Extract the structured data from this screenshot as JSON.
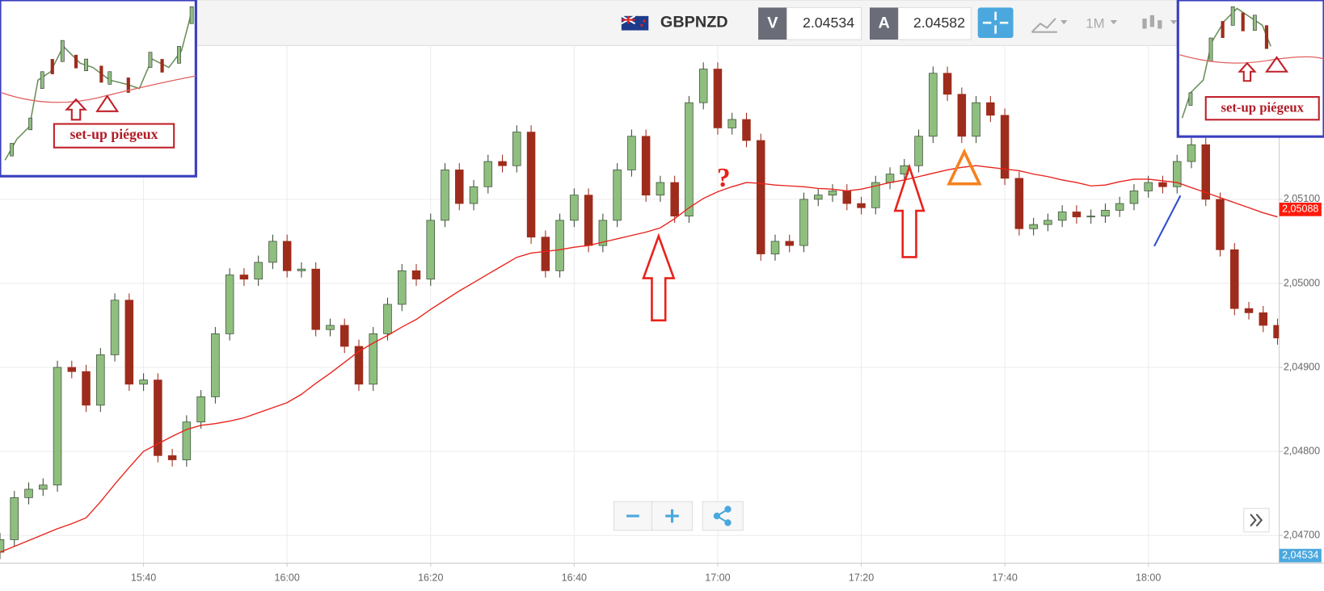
{
  "chart_data": {
    "type": "candlestick",
    "header": {
      "symbol": "GBPNZD",
      "bid_label": "V",
      "bid": 2.04534,
      "ask_label": "A",
      "ask": 2.04582,
      "timeframe": "1M"
    },
    "x": [
      "15:20",
      "15:22",
      "15:24",
      "15:26",
      "15:28",
      "15:30",
      "15:32",
      "15:34",
      "15:36",
      "15:38",
      "15:40",
      "15:42",
      "15:44",
      "15:46",
      "15:48",
      "15:50",
      "15:52",
      "15:54",
      "15:56",
      "15:58",
      "16:00",
      "16:02",
      "16:04",
      "16:06",
      "16:08",
      "16:10",
      "16:12",
      "16:14",
      "16:16",
      "16:18",
      "16:20",
      "16:22",
      "16:24",
      "16:26",
      "16:28",
      "16:30",
      "16:32",
      "16:34",
      "16:36",
      "16:38",
      "16:40",
      "16:42",
      "16:44",
      "16:46",
      "16:48",
      "16:50",
      "16:52",
      "16:54",
      "16:56",
      "16:58",
      "17:00",
      "17:02",
      "17:04",
      "17:06",
      "17:08",
      "17:10",
      "17:12",
      "17:14",
      "17:16",
      "17:18",
      "17:20",
      "17:22",
      "17:24",
      "17:26",
      "17:28",
      "17:30",
      "17:32",
      "17:34",
      "17:36",
      "17:38",
      "17:40",
      "17:42",
      "17:44",
      "17:46",
      "17:48",
      "17:50",
      "17:52",
      "17:54",
      "17:56",
      "17:58",
      "18:00",
      "18:02",
      "18:04",
      "18:06",
      "18:08",
      "18:10",
      "18:12",
      "18:14",
      "18:16",
      "18:18"
    ],
    "open": [
      2.0468,
      2.04695,
      2.04745,
      2.04755,
      2.0476,
      2.049,
      2.04895,
      2.04855,
      2.04915,
      2.0498,
      2.0488,
      2.04885,
      2.04795,
      2.0479,
      2.04835,
      2.04865,
      2.0494,
      2.0501,
      2.05005,
      2.05025,
      2.0505,
      2.05015,
      2.05017,
      2.04945,
      2.0495,
      2.04925,
      2.0488,
      2.0494,
      2.04975,
      2.05015,
      2.05005,
      2.05075,
      2.05135,
      2.05095,
      2.05115,
      2.05145,
      2.0514,
      2.0518,
      2.05055,
      2.05015,
      2.05075,
      2.05105,
      2.05045,
      2.05075,
      2.05135,
      2.05175,
      2.05105,
      2.0512,
      2.0508,
      2.05215,
      2.05255,
      2.05185,
      2.05195,
      2.0517,
      2.05035,
      2.0505,
      2.05045,
      2.051,
      2.05105,
      2.0511,
      2.05095,
      2.0509,
      2.0512,
      2.0513,
      2.0514,
      2.05175,
      2.0525,
      2.05225,
      2.05175,
      2.05215,
      2.052,
      2.05125,
      2.05065,
      2.0507,
      2.05075,
      2.05085,
      2.05079,
      2.0508,
      2.05087,
      2.05095,
      2.0511,
      2.0512,
      2.05115,
      2.05145,
      2.05165,
      2.051,
      2.0504,
      2.0497,
      2.04965,
      2.0495
    ],
    "high": [
      2.04703,
      2.04753,
      2.04763,
      2.04768,
      2.04908,
      2.04908,
      2.04903,
      2.04923,
      2.04988,
      2.04988,
      2.04893,
      2.04893,
      2.04803,
      2.04843,
      2.04873,
      2.04948,
      2.05018,
      2.05018,
      2.05033,
      2.05058,
      2.05058,
      2.05025,
      2.05025,
      2.04958,
      2.04958,
      2.04933,
      2.04948,
      2.04983,
      2.05023,
      2.05023,
      2.05083,
      2.05143,
      2.05143,
      2.05123,
      2.05153,
      2.05153,
      2.05188,
      2.05188,
      2.05063,
      2.05083,
      2.05113,
      2.05113,
      2.05083,
      2.05143,
      2.05183,
      2.05183,
      2.05128,
      2.05128,
      2.05223,
      2.05263,
      2.05263,
      2.05203,
      2.05203,
      2.05178,
      2.05058,
      2.05058,
      2.05108,
      2.05113,
      2.05118,
      2.05118,
      2.05103,
      2.05128,
      2.05138,
      2.05148,
      2.05183,
      2.05258,
      2.05258,
      2.05233,
      2.05223,
      2.05223,
      2.05208,
      2.05133,
      2.05078,
      2.05083,
      2.05093,
      2.05093,
      2.05088,
      2.05095,
      2.05103,
      2.05118,
      2.05128,
      2.05128,
      2.05153,
      2.05173,
      2.05173,
      2.05108,
      2.05048,
      2.04978,
      2.04973,
      2.04958
    ],
    "low": [
      2.04672,
      2.04687,
      2.04737,
      2.04747,
      2.04752,
      2.04887,
      2.04847,
      2.04847,
      2.04907,
      2.04872,
      2.04872,
      2.04787,
      2.04782,
      2.04782,
      2.04827,
      2.04857,
      2.04932,
      2.04997,
      2.04997,
      2.05017,
      2.05007,
      2.05007,
      2.04937,
      2.04937,
      2.04917,
      2.04872,
      2.04872,
      2.04932,
      2.04967,
      2.04997,
      2.04997,
      2.05067,
      2.05087,
      2.05087,
      2.05107,
      2.05132,
      2.05132,
      2.05047,
      2.05007,
      2.05007,
      2.05067,
      2.05037,
      2.05037,
      2.05067,
      2.05127,
      2.05097,
      2.05097,
      2.05072,
      2.05072,
      2.05207,
      2.05177,
      2.05177,
      2.05162,
      2.05027,
      2.05027,
      2.05037,
      2.05037,
      2.05092,
      2.05097,
      2.05087,
      2.05082,
      2.05082,
      2.05112,
      2.05122,
      2.05132,
      2.05167,
      2.05217,
      2.05167,
      2.05167,
      2.05192,
      2.05117,
      2.05057,
      2.05057,
      2.05062,
      2.05067,
      2.05071,
      2.05071,
      2.05072,
      2.05079,
      2.05087,
      2.05102,
      2.05107,
      2.05107,
      2.05137,
      2.05092,
      2.05032,
      2.04962,
      2.04957,
      2.04942,
      2.04927
    ],
    "close": [
      2.04695,
      2.04745,
      2.04755,
      2.0476,
      2.049,
      2.04895,
      2.04855,
      2.04915,
      2.0498,
      2.0488,
      2.04885,
      2.04795,
      2.0479,
      2.04835,
      2.04865,
      2.0494,
      2.0501,
      2.05005,
      2.05025,
      2.0505,
      2.05015,
      2.05017,
      2.04945,
      2.0495,
      2.04925,
      2.0488,
      2.0494,
      2.04975,
      2.05015,
      2.05005,
      2.05075,
      2.05135,
      2.05095,
      2.05115,
      2.05145,
      2.0514,
      2.0518,
      2.05055,
      2.05015,
      2.05075,
      2.05105,
      2.05045,
      2.05075,
      2.05135,
      2.05175,
      2.05105,
      2.0512,
      2.0508,
      2.05215,
      2.05255,
      2.05185,
      2.05195,
      2.0517,
      2.05035,
      2.0505,
      2.05045,
      2.051,
      2.05105,
      2.0511,
      2.05095,
      2.0509,
      2.0512,
      2.0513,
      2.0514,
      2.05175,
      2.0525,
      2.05225,
      2.05175,
      2.05215,
      2.052,
      2.05125,
      2.05065,
      2.0507,
      2.05075,
      2.05085,
      2.05079,
      2.0508,
      2.05087,
      2.05095,
      2.0511,
      2.0512,
      2.05115,
      2.05145,
      2.05165,
      2.051,
      2.0504,
      2.0497,
      2.04965,
      2.0495,
      2.04935
    ],
    "up_color": "#8fbf7f",
    "down_color": "#9e2c1c",
    "ma_color": "#e8221b",
    "ma_values": [
      2.0468,
      2.04687,
      2.04694,
      2.04701,
      2.04708,
      2.04714,
      2.04721,
      2.0474,
      2.04761,
      2.04781,
      2.048,
      2.04809,
      2.04818,
      2.04826,
      2.04831,
      2.04833,
      2.04836,
      2.0484,
      2.04846,
      2.04852,
      2.04858,
      2.04868,
      2.04881,
      2.04893,
      2.04906,
      2.04919,
      2.04929,
      2.04938,
      2.04948,
      2.04957,
      2.04969,
      2.0498,
      2.04991,
      2.05001,
      2.05011,
      2.05021,
      2.05031,
      2.05036,
      2.05038,
      2.0504,
      2.05043,
      2.05045,
      2.05049,
      2.05053,
      2.05057,
      2.05061,
      2.05066,
      2.05077,
      2.0509,
      2.05101,
      2.05109,
      2.05115,
      2.0512,
      2.05119,
      2.05117,
      2.05116,
      2.05115,
      2.05113,
      2.05112,
      2.0511,
      2.05112,
      2.05116,
      2.0512,
      2.05123,
      2.05127,
      2.05131,
      2.05135,
      2.05138,
      2.0514,
      2.05138,
      2.05136,
      2.05134,
      2.0513,
      2.05127,
      2.05123,
      2.0512,
      2.05116,
      2.05117,
      2.05121,
      2.05124,
      2.05124,
      2.05122,
      2.0512,
      2.05114,
      2.05108,
      2.05102,
      2.05096,
      2.0509,
      2.05084,
      2.05079
    ],
    "xlim": [
      "15:20",
      "18:18"
    ],
    "xticks": [
      "15:40",
      "16:00",
      "16:20",
      "16:40",
      "17:00",
      "17:20",
      "17:40",
      "18:00"
    ],
    "ylim": [
      2.04667,
      2.05282
    ],
    "yticks": [
      {
        "value": 2.047,
        "label": "2,04700"
      },
      {
        "value": 2.048,
        "label": "2,04800"
      },
      {
        "value": 2.049,
        "label": "2,04900"
      },
      {
        "value": 2.05,
        "label": "2,05000"
      },
      {
        "value": 2.051,
        "label": "2,05100"
      }
    ],
    "grid": true,
    "price_badges": [
      {
        "value": 2.05088,
        "label": "2,05088",
        "color": "#ff1a0a"
      },
      {
        "value": 2.04534,
        "label": "2,04534",
        "color": "#4aa8de"
      }
    ],
    "annotations": {
      "question": "?",
      "inset_left": "set-up piégeux",
      "inset_right": "set-up piégeux"
    }
  }
}
